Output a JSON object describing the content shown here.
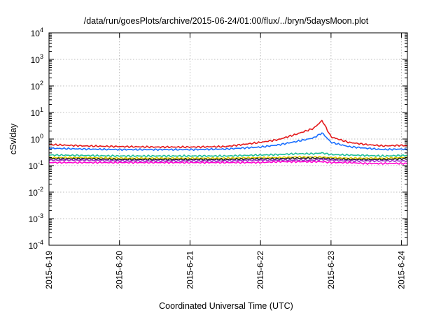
{
  "chart_data": {
    "type": "line",
    "title": "/data/run/goesPlots/archive/2015-06-24/01:00/flux/../bryn/5daysMoon.plot",
    "xlabel": "Coordinated Universal Time (UTC)",
    "ylabel": "cSv/day",
    "xlim": [
      "2015-06-19T00:00",
      "2015-06-24T02:00"
    ],
    "ylim": [
      0.0001,
      10000
    ],
    "yscale": "log",
    "grid": true,
    "x_ticks": [
      {
        "label": "2015-6-19",
        "value": "2015-06-19T00:00"
      },
      {
        "label": "2015-6-20",
        "value": "2015-06-20T00:00"
      },
      {
        "label": "2015-6-21",
        "value": "2015-06-21T00:00"
      },
      {
        "label": "2015-6-22",
        "value": "2015-06-22T00:00"
      },
      {
        "label": "2015-6-23",
        "value": "2015-06-23T00:00"
      },
      {
        "label": "2015-6-24",
        "value": "2015-06-24T00:00"
      }
    ],
    "y_ticks": [
      {
        "base": "10",
        "exp": "-4",
        "value": 0.0001
      },
      {
        "base": "10",
        "exp": "-3",
        "value": 0.001
      },
      {
        "base": "10",
        "exp": "-2",
        "value": 0.01
      },
      {
        "base": "10",
        "exp": "-1",
        "value": 0.1
      },
      {
        "base": "10",
        "exp": "0",
        "value": 1
      },
      {
        "base": "10",
        "exp": "1",
        "value": 10
      },
      {
        "base": "10",
        "exp": "2",
        "value": 100
      },
      {
        "base": "10",
        "exp": "3",
        "value": 1000
      },
      {
        "base": "10",
        "exp": "4",
        "value": 10000
      }
    ],
    "x": [
      "2015-06-19T00:00",
      "2015-06-19T12:00",
      "2015-06-20T00:00",
      "2015-06-20T12:00",
      "2015-06-21T00:00",
      "2015-06-21T12:00",
      "2015-06-22T00:00",
      "2015-06-22T06:00",
      "2015-06-22T12:00",
      "2015-06-22T18:00",
      "2015-06-22T21:00",
      "2015-06-23T00:00",
      "2015-06-23T06:00",
      "2015-06-23T12:00",
      "2015-06-23T18:00",
      "2015-06-24T00:00",
      "2015-06-24T02:00"
    ],
    "series": [
      {
        "color": "#e41a1c",
        "values": [
          0.62,
          0.55,
          0.52,
          0.5,
          0.5,
          0.52,
          0.75,
          0.95,
          1.5,
          2.5,
          5.0,
          1.2,
          0.75,
          0.62,
          0.55,
          0.58,
          0.55
        ]
      },
      {
        "color": "#1a6fff",
        "values": [
          0.45,
          0.42,
          0.4,
          0.4,
          0.4,
          0.42,
          0.5,
          0.6,
          0.8,
          1.1,
          1.7,
          0.75,
          0.52,
          0.45,
          0.4,
          0.42,
          0.4
        ]
      },
      {
        "color": "#1fbf9a",
        "values": [
          0.25,
          0.24,
          0.23,
          0.23,
          0.23,
          0.23,
          0.25,
          0.26,
          0.28,
          0.28,
          0.3,
          0.26,
          0.25,
          0.24,
          0.23,
          0.24,
          0.24
        ]
      },
      {
        "color": "#e4d000",
        "values": [
          0.2,
          0.2,
          0.19,
          0.19,
          0.19,
          0.19,
          0.2,
          0.2,
          0.21,
          0.21,
          0.21,
          0.2,
          0.19,
          0.19,
          0.19,
          0.2,
          0.2
        ]
      },
      {
        "color": "#222222",
        "values": [
          0.18,
          0.18,
          0.17,
          0.17,
          0.17,
          0.17,
          0.18,
          0.18,
          0.19,
          0.19,
          0.19,
          0.18,
          0.17,
          0.17,
          0.17,
          0.18,
          0.18
        ]
      },
      {
        "color": "#9a30c8",
        "values": [
          0.16,
          0.16,
          0.15,
          0.15,
          0.15,
          0.15,
          0.16,
          0.16,
          0.16,
          0.16,
          0.17,
          0.16,
          0.15,
          0.15,
          0.15,
          0.15,
          0.15
        ]
      },
      {
        "color": "#ff00d0",
        "values": [
          0.13,
          0.13,
          0.13,
          0.13,
          0.13,
          0.13,
          0.13,
          0.14,
          0.14,
          0.14,
          0.14,
          0.13,
          0.13,
          0.12,
          0.12,
          0.12,
          0.12
        ]
      }
    ]
  }
}
